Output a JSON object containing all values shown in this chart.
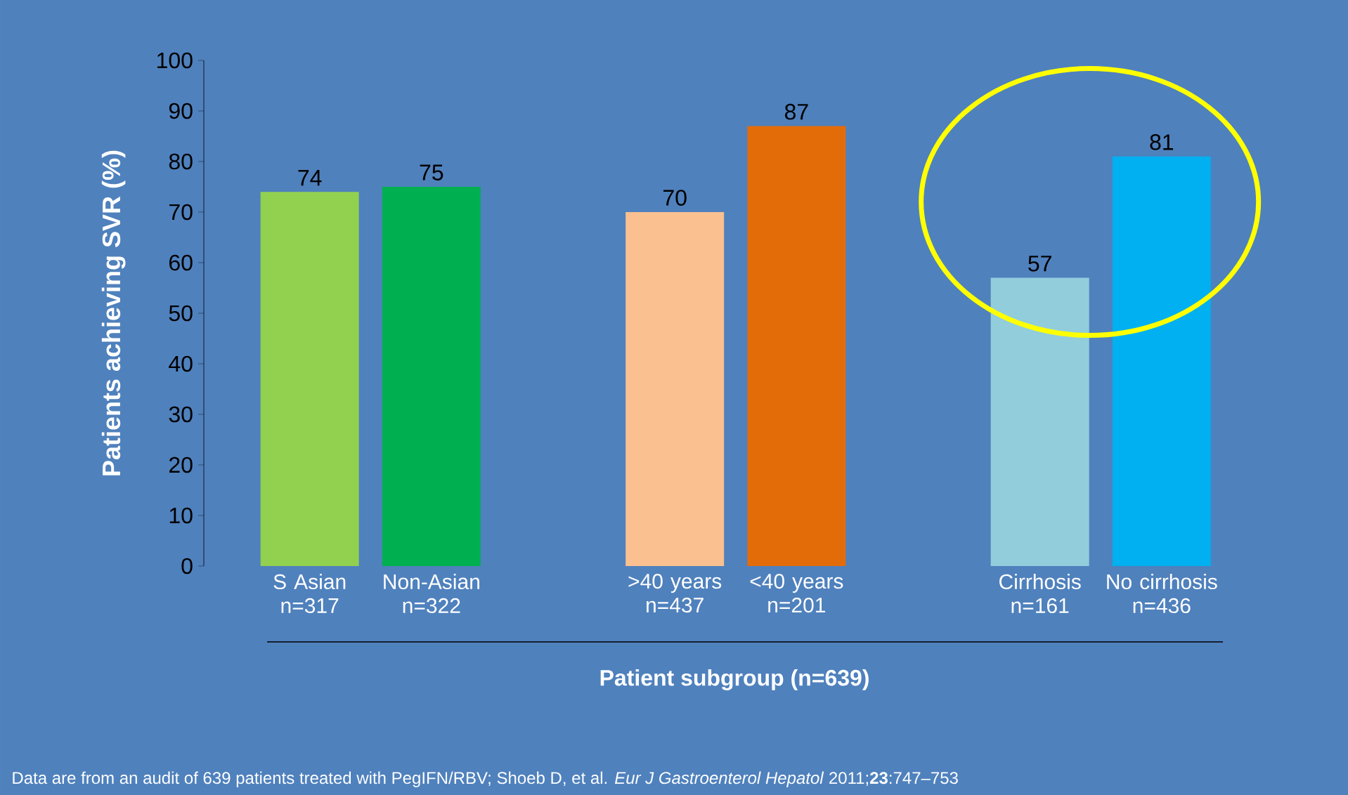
{
  "chart_data": {
    "type": "bar",
    "categories": [
      "S Asian n=317",
      "Non-Asian n=322",
      null,
      ">40 years n=437",
      "<40 years n=201",
      null,
      "Cirrhosis n=161",
      "No cirrhosis n=436"
    ],
    "values": [
      74,
      75,
      null,
      70,
      87,
      null,
      57,
      81
    ],
    "colors": [
      "#92d050",
      "#00b050",
      "#92d050",
      "#fac090",
      "#e36c09",
      "#92cddc",
      "#92cddc",
      "#00b0f0"
    ],
    "ylim": [
      0,
      100
    ],
    "yticks": [
      0,
      10,
      20,
      30,
      40,
      50,
      60,
      70,
      80,
      90,
      100
    ],
    "ylabel": "Patients achieving SVR (%)",
    "xlabel": "Patient subgroup (n=639)",
    "data_labels": true,
    "annotations": [
      "Data are from an audit of 639 patients treated with PegIFN/RBV; Shoeb D, et al. *Eur J Gastroenterol Hepatol* 2011;**23**:747–753"
    ]
  }
}
